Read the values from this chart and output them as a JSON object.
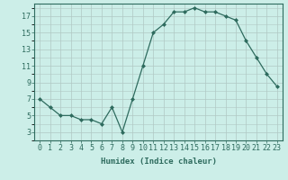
{
  "x": [
    0,
    1,
    2,
    3,
    4,
    5,
    6,
    7,
    8,
    9,
    10,
    11,
    12,
    13,
    14,
    15,
    16,
    17,
    18,
    19,
    20,
    21,
    22,
    23
  ],
  "y": [
    7,
    6,
    5,
    5,
    4.5,
    4.5,
    4,
    6,
    3,
    7,
    11,
    15,
    16,
    17.5,
    17.5,
    18,
    17.5,
    17.5,
    17,
    16.5,
    14,
    12,
    10,
    8.5
  ],
  "line_color": "#2e6b5e",
  "marker": "D",
  "marker_size": 2.0,
  "bg_color": "#cceee8",
  "grid_color": "#b0c8c4",
  "xlabel": "Humidex (Indice chaleur)",
  "xlim": [
    -0.5,
    23.5
  ],
  "ylim": [
    2.0,
    18.5
  ],
  "yticks": [
    3,
    5,
    7,
    9,
    11,
    13,
    15,
    17
  ],
  "xticks": [
    0,
    1,
    2,
    3,
    4,
    5,
    6,
    7,
    8,
    9,
    10,
    11,
    12,
    13,
    14,
    15,
    16,
    17,
    18,
    19,
    20,
    21,
    22,
    23
  ],
  "xlabel_fontsize": 6.5,
  "tick_fontsize": 6.0,
  "tick_color": "#2e6b5e",
  "spine_color": "#2e6b5e"
}
